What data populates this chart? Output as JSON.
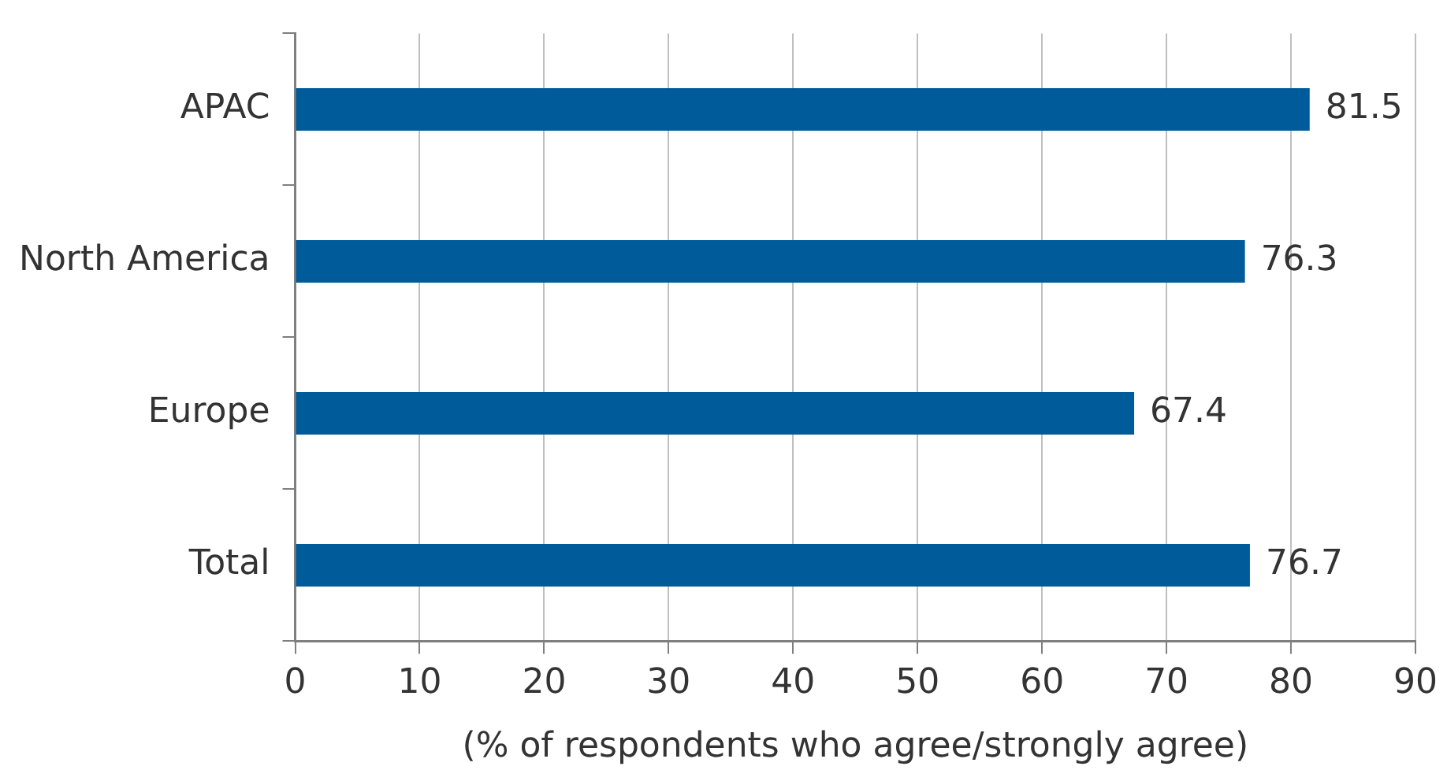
{
  "chart_data": {
    "type": "bar",
    "orientation": "horizontal",
    "categories": [
      "APAC",
      "North America",
      "Europe",
      "Total"
    ],
    "values": [
      81.5,
      76.3,
      67.4,
      76.7
    ],
    "color": "#005b9a",
    "xlim": [
      0,
      90
    ],
    "xticks": [
      0,
      10,
      20,
      30,
      40,
      50,
      60,
      70,
      80,
      90
    ],
    "xlabel": "(% of respondents who agree/strongly agree)",
    "grid": "x",
    "data_labels": true,
    "legend": false
  }
}
